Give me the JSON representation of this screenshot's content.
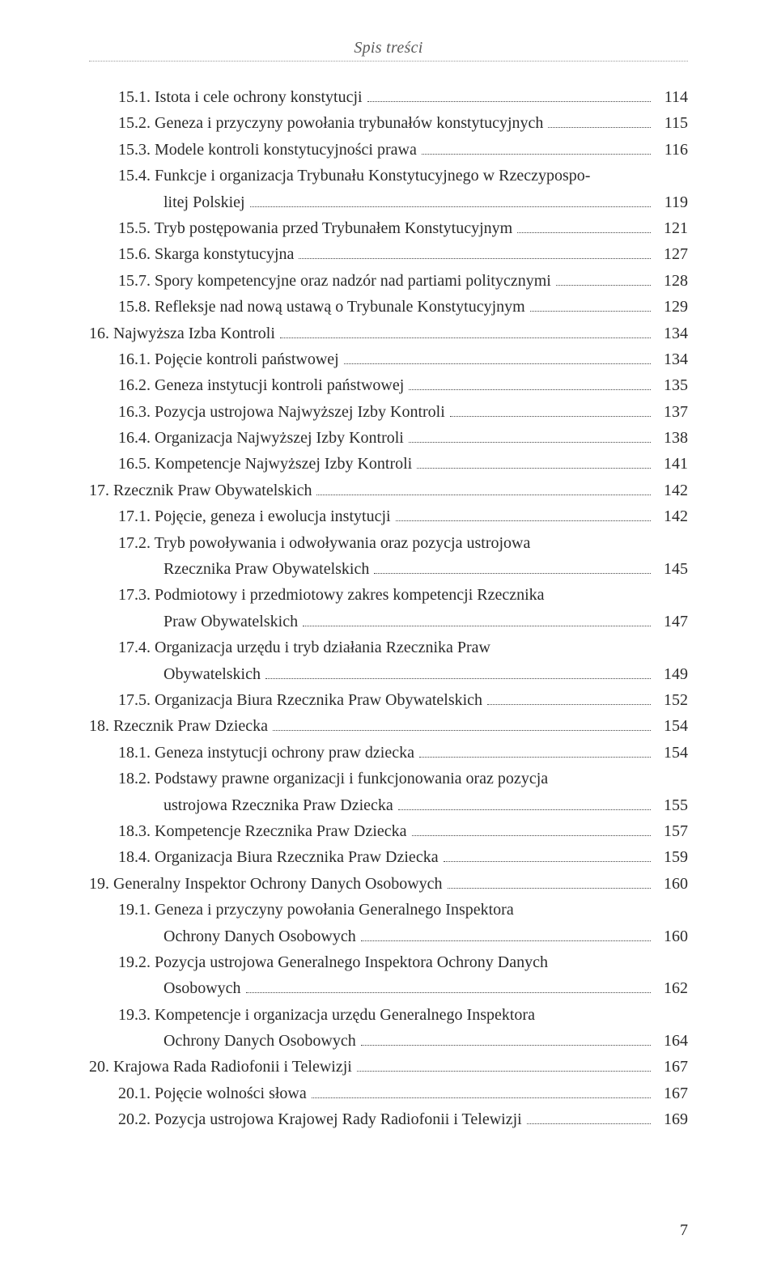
{
  "header": {
    "title": "Spis treści"
  },
  "page_number": "7",
  "colors": {
    "text": "#2b2b2b",
    "header_text": "#5a5a5a",
    "dot_rule": "#9a9a9a",
    "background": "#ffffff"
  },
  "typography": {
    "body_fontsize_pt": 15,
    "header_fontsize_pt": 15,
    "font_family": "Georgia serif",
    "line_height": 1.62
  },
  "toc": [
    {
      "level": 1,
      "text": "15.1. Istota i cele ochrony konstytucji",
      "page": "114"
    },
    {
      "level": 1,
      "text": "15.2. Geneza i przyczyny powołania trybunałów konstytucyjnych",
      "page": "115"
    },
    {
      "level": 1,
      "text": "15.3. Modele kontroli konstytucyjności prawa",
      "page": "116"
    },
    {
      "level": 1,
      "text": "15.4. Funkcje i organizacja Trybunału Konstytucyjnego w Rzeczypospolitej Polskiej",
      "cont": "litej Polskiej",
      "first": "15.4. Funkcje i organizacja Trybunału Konstytucyjnego w Rzeczypospo-",
      "page": "119"
    },
    {
      "level": 1,
      "text": "15.5. Tryb postępowania przed Trybunałem Konstytucyjnym",
      "page": "121"
    },
    {
      "level": 1,
      "text": "15.6. Skarga konstytucyjna",
      "page": "127"
    },
    {
      "level": 1,
      "text": "15.7. Spory kompetencyjne oraz nadzór nad partiami politycznymi",
      "page": "128"
    },
    {
      "level": 1,
      "text": "15.8. Refleksje nad nową ustawą o Trybunale Konstytucyjnym",
      "page": "129"
    },
    {
      "level": 0,
      "text": "16. Najwyższa Izba Kontroli",
      "page": "134"
    },
    {
      "level": 1,
      "text": "16.1. Pojęcie kontroli państwowej",
      "page": "134"
    },
    {
      "level": 1,
      "text": "16.2. Geneza instytucji kontroli państwowej",
      "page": "135"
    },
    {
      "level": 1,
      "text": "16.3. Pozycja ustrojowa Najwyższej Izby Kontroli",
      "page": "137"
    },
    {
      "level": 1,
      "text": "16.4. Organizacja Najwyższej Izby Kontroli",
      "page": "138"
    },
    {
      "level": 1,
      "text": "16.5. Kompetencje Najwyższej Izby Kontroli",
      "page": "141"
    },
    {
      "level": 0,
      "text": "17. Rzecznik Praw Obywatelskich",
      "page": "142"
    },
    {
      "level": 1,
      "text": "17.1. Pojęcie, geneza i ewolucja instytucji",
      "page": "142"
    },
    {
      "level": 1,
      "first": "17.2. Tryb powoływania i odwoływania oraz pozycja ustrojowa",
      "cont": "Rzecznika Praw Obywatelskich",
      "page": "145"
    },
    {
      "level": 1,
      "first": "17.3. Podmiotowy i przedmiotowy zakres kompetencji Rzecznika",
      "cont": "Praw Obywatelskich",
      "page": "147"
    },
    {
      "level": 1,
      "first": "17.4. Organizacja urzędu i tryb działania Rzecznika Praw",
      "cont": "Obywatelskich",
      "page": "149"
    },
    {
      "level": 1,
      "text": "17.5. Organizacja Biura Rzecznika Praw Obywatelskich",
      "page": "152"
    },
    {
      "level": 0,
      "text": "18. Rzecznik Praw Dziecka",
      "page": "154"
    },
    {
      "level": 1,
      "text": "18.1. Geneza instytucji ochrony praw dziecka",
      "page": "154"
    },
    {
      "level": 1,
      "first": "18.2. Podstawy prawne organizacji i funkcjonowania oraz pozycja",
      "cont": "ustrojowa Rzecznika Praw Dziecka",
      "page": "155"
    },
    {
      "level": 1,
      "text": "18.3. Kompetencje Rzecznika Praw Dziecka",
      "page": "157"
    },
    {
      "level": 1,
      "text": "18.4. Organizacja Biura Rzecznika Praw Dziecka",
      "page": "159"
    },
    {
      "level": 0,
      "text": "19. Generalny Inspektor Ochrony Danych Osobowych",
      "page": "160"
    },
    {
      "level": 1,
      "first": "19.1. Geneza i przyczyny powołania Generalnego Inspektora",
      "cont": "Ochrony Danych Osobowych",
      "page": "160"
    },
    {
      "level": 1,
      "first": "19.2. Pozycja ustrojowa Generalnego Inspektora Ochrony Danych",
      "cont": "Osobowych",
      "page": "162"
    },
    {
      "level": 1,
      "first": "19.3. Kompetencje i organizacja urzędu Generalnego Inspektora",
      "cont": "Ochrony Danych Osobowych",
      "page": "164"
    },
    {
      "level": 0,
      "text": "20. Krajowa Rada Radiofonii i Telewizji",
      "page": "167"
    },
    {
      "level": 1,
      "text": "20.1. Pojęcie wolności słowa",
      "page": "167"
    },
    {
      "level": 1,
      "text": "20.2. Pozycja ustrojowa Krajowej Rady Radiofonii i Telewizji",
      "page": "169"
    }
  ]
}
